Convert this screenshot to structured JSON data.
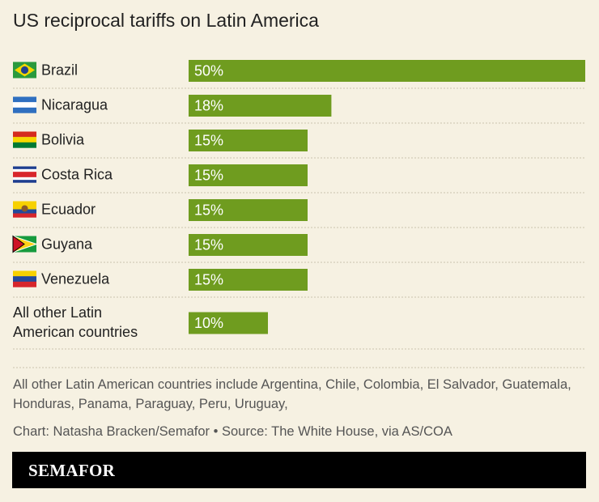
{
  "chart_data": {
    "type": "bar",
    "orientation": "horizontal",
    "title": "US reciprocal tariffs on Latin America",
    "categories": [
      "Brazil",
      "Nicaragua",
      "Bolivia",
      "Costa Rica",
      "Ecuador",
      "Guyana",
      "Venezuela",
      "All other Latin American countries"
    ],
    "values": [
      50,
      18,
      15,
      15,
      15,
      15,
      15,
      10
    ],
    "value_labels": [
      "50%",
      "18%",
      "15%",
      "15%",
      "15%",
      "15%",
      "15%",
      "10%"
    ],
    "color": "#6f9c1f"
  },
  "footnote": "All other Latin American countries include Argentina, Chile, Colombia, El Salvador, Guatemala, Honduras, Panama, Paraguay, Peru, Uruguay,",
  "credit": "Chart: Natasha Bracken/Semafor • Source: The White House, via AS/COA",
  "logo": "SEMAFOR"
}
